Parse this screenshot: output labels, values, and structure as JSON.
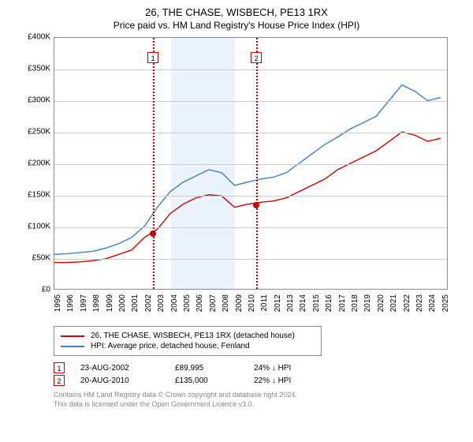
{
  "title": "26, THE CHASE, WISBECH, PE13 1RX",
  "subtitle": "Price paid vs. HM Land Registry's House Price Index (HPI)",
  "chart": {
    "type": "line",
    "ylim": [
      0,
      400000
    ],
    "ytick_step": 50000,
    "ytick_labels": [
      "£0",
      "£50K",
      "£100K",
      "£150K",
      "£200K",
      "£250K",
      "£300K",
      "£350K",
      "£400K"
    ],
    "xlim": [
      1995,
      2025.5
    ],
    "xtick_step": 1,
    "xtick_labels": [
      "1995",
      "1996",
      "1997",
      "1998",
      "1999",
      "2000",
      "2001",
      "2002",
      "2003",
      "2004",
      "2005",
      "2006",
      "2007",
      "2008",
      "2009",
      "2010",
      "2011",
      "2012",
      "2013",
      "2014",
      "2015",
      "2016",
      "2017",
      "2018",
      "2019",
      "2020",
      "2021",
      "2022",
      "2023",
      "2024",
      "2025"
    ],
    "highlight": {
      "x_start": 2004,
      "x_end": 2009,
      "color": "#eaf2fb"
    },
    "grid_color": "#cccccc",
    "background_color": "#ffffff",
    "series_property": {
      "label": "26, THE CHASE, WISBECH, PE13 1RX (detached house)",
      "color": "#cc0000",
      "x": [
        1995,
        1996,
        1997,
        1998,
        1999,
        2000,
        2001,
        2002,
        2003,
        2004,
        2005,
        2006,
        2007,
        2008,
        2009,
        2010,
        2011,
        2012,
        2013,
        2014,
        2015,
        2016,
        2017,
        2018,
        2019,
        2020,
        2021,
        2022,
        2023,
        2024,
        2025
      ],
      "y": [
        42000,
        42000,
        43000,
        45000,
        48000,
        55000,
        62000,
        82000,
        95000,
        120000,
        135000,
        145000,
        150000,
        148000,
        130000,
        135000,
        138000,
        140000,
        145000,
        155000,
        165000,
        175000,
        190000,
        200000,
        210000,
        220000,
        235000,
        250000,
        245000,
        235000,
        240000
      ]
    },
    "series_hpi": {
      "label": "HPI: Average price, detached house, Fenland",
      "color": "#3f7fbf",
      "x": [
        1995,
        1996,
        1997,
        1998,
        1999,
        2000,
        2001,
        2002,
        2003,
        2004,
        2005,
        2006,
        2007,
        2008,
        2009,
        2010,
        2011,
        2012,
        2013,
        2014,
        2015,
        2016,
        2017,
        2018,
        2019,
        2020,
        2021,
        2022,
        2023,
        2024,
        2025
      ],
      "y": [
        55000,
        56000,
        58000,
        60000,
        65000,
        72000,
        82000,
        100000,
        130000,
        155000,
        170000,
        180000,
        190000,
        185000,
        165000,
        170000,
        175000,
        178000,
        185000,
        200000,
        215000,
        230000,
        242000,
        255000,
        265000,
        275000,
        300000,
        325000,
        315000,
        300000,
        305000
      ]
    },
    "ref_lines": [
      {
        "n": "1",
        "x": 2002.63
      },
      {
        "n": "2",
        "x": 2010.63
      }
    ],
    "markers": [
      {
        "x": 2002.63,
        "y": 89995,
        "color": "#cc0000"
      },
      {
        "x": 2010.63,
        "y": 135000,
        "color": "#cc0000"
      }
    ]
  },
  "legend": {
    "items": [
      {
        "color": "#cc0000",
        "label": "26, THE CHASE, WISBECH, PE13 1RX (detached house)"
      },
      {
        "color": "#3f7fbf",
        "label": "HPI: Average price, detached house, Fenland"
      }
    ]
  },
  "table": {
    "rows": [
      {
        "n": "1",
        "date": "23-AUG-2002",
        "price": "£89,995",
        "pct": "24% ↓ HPI"
      },
      {
        "n": "2",
        "date": "20-AUG-2010",
        "price": "£135,000",
        "pct": "22% ↓ HPI"
      }
    ]
  },
  "footer": {
    "line1": "Contains HM Land Registry data © Crown copyright and database right 2024.",
    "line2": "This data is licensed under the Open Government Licence v3.0."
  }
}
